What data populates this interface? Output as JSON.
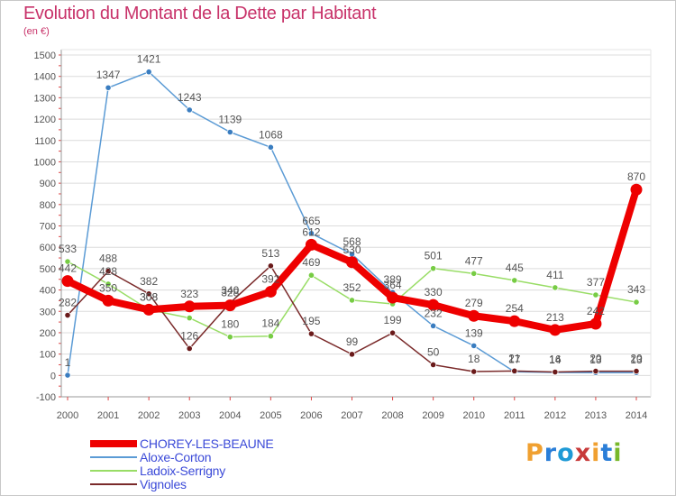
{
  "title": "Evolution du Montant de la Dette par Habitant",
  "unit": "(en €)",
  "logo": {
    "text": "Proxiti",
    "colors": [
      "#f0a030",
      "#2a7ed8",
      "#1e9ad6",
      "#c83a3a",
      "#f0a030",
      "#2a7ed8",
      "#78b82a"
    ]
  },
  "chart_data": {
    "type": "line",
    "title": "Evolution du Montant de la Dette par Habitant",
    "ylabel": "(en €)",
    "xlabel": "",
    "x": [
      2000,
      2001,
      2002,
      2003,
      2004,
      2005,
      2006,
      2007,
      2008,
      2009,
      2010,
      2011,
      2012,
      2013,
      2014
    ],
    "ylim": [
      -100,
      1500
    ],
    "yticks": [
      -100,
      0,
      100,
      200,
      300,
      400,
      500,
      600,
      700,
      800,
      900,
      1000,
      1100,
      1200,
      1300,
      1400,
      1500
    ],
    "grid": "horizontal",
    "legend_position": "bottom-left",
    "series": [
      {
        "name": "Aloxe-Corton",
        "color": "#5b9bd5",
        "point_color": "#3a7dc0",
        "values": [
          1,
          1347,
          1421,
          1243,
          1139,
          1068,
          665,
          568,
          389,
          232,
          139,
          17,
          14,
          13,
          13
        ],
        "labels": [
          "1",
          "1347",
          "1421",
          "1243",
          "1139",
          "1068",
          "665",
          "568",
          "389",
          "232",
          "139",
          "17",
          "14",
          "13",
          "13"
        ]
      },
      {
        "name": "Ladoix-Serrigny",
        "color": "#99dd66",
        "point_color": "#77cc44",
        "values": [
          533,
          428,
          308,
          269,
          180,
          184,
          469,
          352,
          335,
          501,
          477,
          445,
          411,
          377,
          343
        ],
        "labels": [
          "533",
          "428",
          "308",
          "",
          "180",
          "184",
          "469",
          "352",
          "",
          "501",
          "477",
          "445",
          "411",
          "377",
          "343"
        ]
      },
      {
        "name": "Vignoles",
        "color": "#7a2a2a",
        "point_color": "#6a1a1a",
        "values": [
          282,
          488,
          382,
          126,
          340,
          513,
          195,
          99,
          199,
          50,
          18,
          21,
          16,
          20,
          20
        ],
        "labels": [
          "282",
          "488",
          "382",
          "126",
          "340",
          "513",
          "195",
          "99",
          "199",
          "50",
          "18",
          "21",
          "16",
          "20",
          "20"
        ]
      },
      {
        "name": "CHOREY-LES-BEAUNE",
        "color": "#ee0000",
        "point_color": "#ee0000",
        "values": [
          442,
          350,
          308,
          323,
          328,
          392,
          612,
          530,
          364,
          330,
          279,
          254,
          213,
          242,
          870
        ],
        "labels": [
          "442",
          "350",
          "308",
          "323",
          "328",
          "392",
          "612",
          "530",
          "364",
          "330",
          "279",
          "254",
          "213",
          "242",
          "870"
        ]
      }
    ]
  }
}
